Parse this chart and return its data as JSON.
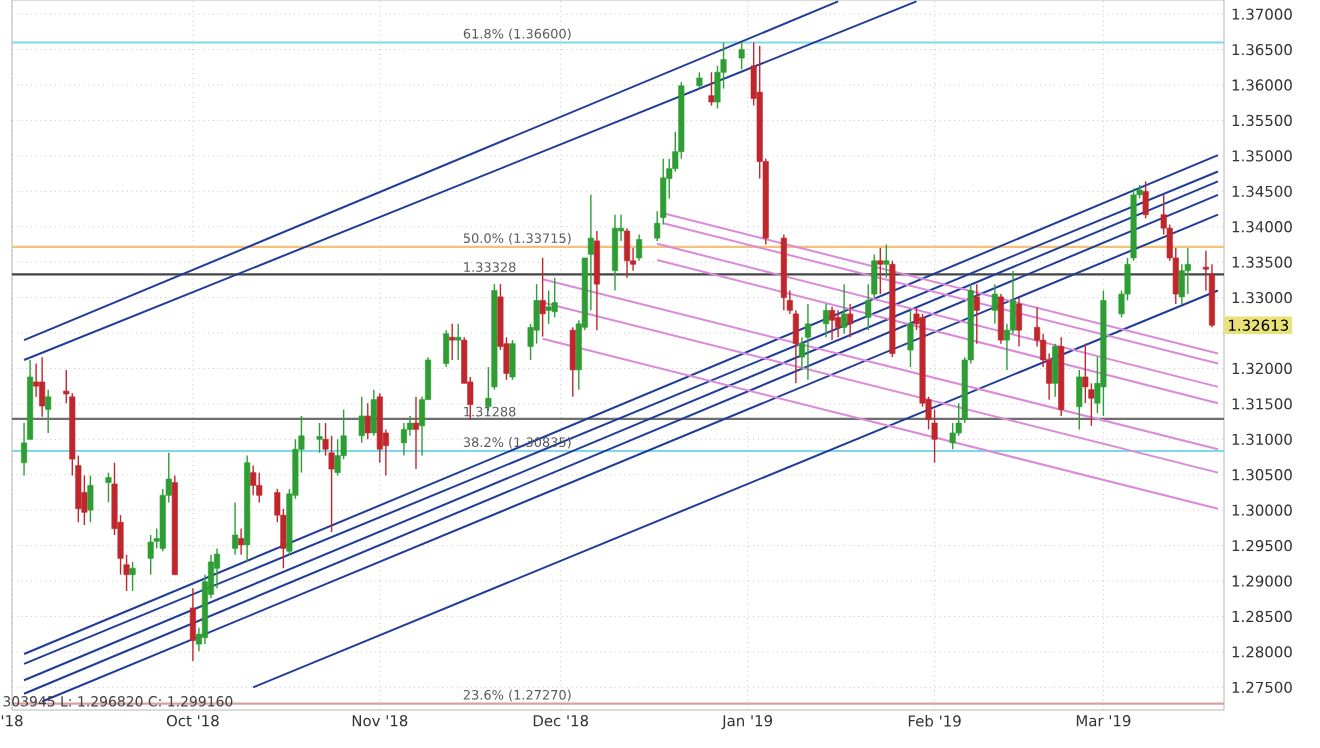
{
  "chart_data": {
    "type": "candlestick",
    "grid": true,
    "xlim": [
      "2018-09-01",
      "2019-03-21"
    ],
    "ylim": [
      1.2718,
      1.372
    ],
    "xticks": [
      {
        "value": "2018-09-01",
        "label": "'18"
      },
      {
        "value": "2018-10-01",
        "label": "Oct '18"
      },
      {
        "value": "2018-11-01",
        "label": "Nov '18"
      },
      {
        "value": "2018-12-01",
        "label": "Dec '18"
      },
      {
        "value": "2019-01-01",
        "label": "Jan '19"
      },
      {
        "value": "2019-02-01",
        "label": "Feb '19"
      },
      {
        "value": "2019-03-01",
        "label": "Mar '19"
      }
    ],
    "yticks": [
      {
        "value": 1.275,
        "label": "1.27500"
      },
      {
        "value": 1.28,
        "label": "1.28000"
      },
      {
        "value": 1.285,
        "label": "1.28500"
      },
      {
        "value": 1.29,
        "label": "1.29000"
      },
      {
        "value": 1.295,
        "label": "1.29500"
      },
      {
        "value": 1.3,
        "label": "1.30000"
      },
      {
        "value": 1.305,
        "label": "1.30500"
      },
      {
        "value": 1.31,
        "label": "1.31000"
      },
      {
        "value": 1.315,
        "label": "1.31500"
      },
      {
        "value": 1.32,
        "label": "1.32000"
      },
      {
        "value": 1.325,
        "label": null
      },
      {
        "value": 1.33,
        "label": "1.33000"
      },
      {
        "value": 1.335,
        "label": "1.33500"
      },
      {
        "value": 1.34,
        "label": "1.34000"
      },
      {
        "value": 1.345,
        "label": "1.34500"
      },
      {
        "value": 1.35,
        "label": "1.35000"
      },
      {
        "value": 1.355,
        "label": "1.35500"
      },
      {
        "value": 1.36,
        "label": "1.36000"
      },
      {
        "value": 1.365,
        "label": "1.36500"
      },
      {
        "value": 1.37,
        "label": "1.37000"
      }
    ],
    "x": [
      "2018-09-03",
      "2018-09-04",
      "2018-09-05",
      "2018-09-06",
      "2018-09-07",
      "2018-09-10",
      "2018-09-11",
      "2018-09-12",
      "2018-09-13",
      "2018-09-14",
      "2018-09-17",
      "2018-09-18",
      "2018-09-19",
      "2018-09-20",
      "2018-09-21",
      "2018-09-24",
      "2018-09-25",
      "2018-09-26",
      "2018-09-27",
      "2018-09-28",
      "2018-10-01",
      "2018-10-02",
      "2018-10-03",
      "2018-10-04",
      "2018-10-05",
      "2018-10-08",
      "2018-10-09",
      "2018-10-10",
      "2018-10-11",
      "2018-10-12",
      "2018-10-15",
      "2018-10-16",
      "2018-10-17",
      "2018-10-18",
      "2018-10-19",
      "2018-10-22",
      "2018-10-23",
      "2018-10-24",
      "2018-10-25",
      "2018-10-26",
      "2018-10-29",
      "2018-10-30",
      "2018-10-31",
      "2018-11-01",
      "2018-11-02",
      "2018-11-05",
      "2018-11-06",
      "2018-11-07",
      "2018-11-08",
      "2018-11-09",
      "2018-11-12",
      "2018-11-13",
      "2018-11-14",
      "2018-11-15",
      "2018-11-16",
      "2018-11-19",
      "2018-11-20",
      "2018-11-21",
      "2018-11-22",
      "2018-11-23",
      "2018-11-26",
      "2018-11-27",
      "2018-11-28",
      "2018-11-29",
      "2018-11-30",
      "2018-12-03",
      "2018-12-04",
      "2018-12-05",
      "2018-12-06",
      "2018-12-07",
      "2018-12-10",
      "2018-12-11",
      "2018-12-12",
      "2018-12-13",
      "2018-12-14",
      "2018-12-17",
      "2018-12-18",
      "2018-12-19",
      "2018-12-20",
      "2018-12-21",
      "2018-12-24",
      "2018-12-26",
      "2018-12-27",
      "2018-12-28",
      "2018-12-31",
      "2019-01-02",
      "2019-01-03",
      "2019-01-04",
      "2019-01-07",
      "2019-01-08",
      "2019-01-09",
      "2019-01-10",
      "2019-01-11",
      "2019-01-14",
      "2019-01-15",
      "2019-01-16",
      "2019-01-17",
      "2019-01-18",
      "2019-01-21",
      "2019-01-22",
      "2019-01-23",
      "2019-01-24",
      "2019-01-25",
      "2019-01-28",
      "2019-01-29",
      "2019-01-30",
      "2019-01-31",
      "2019-02-01",
      "2019-02-04",
      "2019-02-05",
      "2019-02-06",
      "2019-02-07",
      "2019-02-08",
      "2019-02-11",
      "2019-02-12",
      "2019-02-13",
      "2019-02-14",
      "2019-02-15",
      "2019-02-18",
      "2019-02-19",
      "2019-02-20",
      "2019-02-21",
      "2019-02-22",
      "2019-02-25",
      "2019-02-26",
      "2019-02-27",
      "2019-02-28",
      "2019-03-01",
      "2019-03-04",
      "2019-03-05",
      "2019-03-06",
      "2019-03-07",
      "2019-03-08",
      "2019-03-11",
      "2019-03-12",
      "2019-03-13",
      "2019-03-14",
      "2019-03-15",
      "2019-03-18",
      "2019-03-19"
    ],
    "ohlc": [
      [
        1.3067,
        1.3123,
        1.3049,
        1.3095
      ],
      [
        1.31,
        1.3212,
        1.31,
        1.3188
      ],
      [
        1.3181,
        1.3207,
        1.316,
        1.3175
      ],
      [
        1.3181,
        1.3216,
        1.3132,
        1.3147
      ],
      [
        1.3142,
        1.317,
        1.3109,
        1.316
      ],
      [
        1.3168,
        1.3198,
        1.3151,
        1.3164
      ],
      [
        1.316,
        1.3165,
        1.3049,
        1.3072
      ],
      [
        1.3063,
        1.3077,
        1.2983,
        1.3002
      ],
      [
        1.3025,
        1.3049,
        1.2979,
        1.2997
      ],
      [
        1.3,
        1.3049,
        1.2983,
        1.3035
      ],
      [
        1.3039,
        1.3053,
        1.3011,
        1.3046
      ],
      [
        1.3037,
        1.3067,
        1.2965,
        1.2974
      ],
      [
        1.2983,
        1.2993,
        1.2909,
        1.2932
      ],
      [
        1.2923,
        1.2937,
        1.2886,
        1.2909
      ],
      [
        1.2909,
        1.2927,
        1.2886,
        1.2918
      ],
      [
        1.2932,
        1.2965,
        1.2909,
        1.2955
      ],
      [
        1.2956,
        1.2974,
        1.2946,
        1.296
      ],
      [
        1.2946,
        1.303,
        1.2942,
        1.3021
      ],
      [
        1.3021,
        1.3081,
        1.3011,
        1.3044
      ],
      [
        1.3039,
        1.3049,
        1.2909,
        1.2909
      ],
      [
        1.2862,
        1.289,
        1.2787,
        1.2816
      ],
      [
        1.2811,
        1.2834,
        1.2801,
        1.2825
      ],
      [
        1.282,
        1.2909,
        1.2811,
        1.2899
      ],
      [
        1.2881,
        1.2937,
        1.2876,
        1.2927
      ],
      [
        1.2918,
        1.2946,
        1.289,
        1.2938
      ],
      [
        1.2946,
        1.3011,
        1.2937,
        1.2965
      ],
      [
        1.296,
        1.2974,
        1.2937,
        1.2951
      ],
      [
        1.2951,
        1.3077,
        1.2927,
        1.3067
      ],
      [
        1.3053,
        1.3063,
        1.3021,
        1.3035
      ],
      [
        1.3035,
        1.3053,
        1.3011,
        1.3021
      ],
      [
        1.3025,
        1.303,
        1.2983,
        1.2993
      ],
      [
        1.2993,
        1.3002,
        1.2918,
        1.2946
      ],
      [
        1.2942,
        1.303,
        1.2937,
        1.3023
      ],
      [
        1.3021,
        1.31,
        1.3016,
        1.3086
      ],
      [
        1.3086,
        1.3133,
        1.3053,
        1.3105
      ],
      [
        1.31,
        1.3123,
        1.3081,
        1.3104
      ],
      [
        1.31,
        1.3123,
        1.3077,
        1.3086
      ],
      [
        1.3081,
        1.3105,
        1.2969,
        1.3058
      ],
      [
        1.3053,
        1.31,
        1.3049,
        1.3077
      ],
      [
        1.3077,
        1.3142,
        1.3072,
        1.3105
      ],
      [
        1.3105,
        1.316,
        1.3095,
        1.3133
      ],
      [
        1.3133,
        1.3151,
        1.31,
        1.3109
      ],
      [
        1.3109,
        1.317,
        1.3105,
        1.3156
      ],
      [
        1.316,
        1.3165,
        1.3067,
        1.3086
      ],
      [
        1.3109,
        1.3114,
        1.3049,
        1.3091
      ],
      [
        1.3095,
        1.3123,
        1.3077,
        1.3114
      ],
      [
        1.3114,
        1.3133,
        1.3105,
        1.3123
      ],
      [
        1.3123,
        1.316,
        1.3058,
        1.3114
      ],
      [
        1.3119,
        1.316,
        1.3077,
        1.3156
      ],
      [
        1.3156,
        1.3216,
        1.3156,
        1.3212
      ],
      [
        1.3207,
        1.3254,
        1.3202,
        1.3249
      ],
      [
        1.3244,
        1.3263,
        1.3212,
        1.324
      ],
      [
        1.324,
        1.3263,
        1.3212,
        1.3244
      ],
      [
        1.324,
        1.3244,
        1.3179,
        1.3179
      ],
      [
        1.3181,
        1.3188,
        1.3128,
        1.3149
      ],
      [
        1.3146,
        1.3202,
        1.314,
        1.3158
      ],
      [
        1.3174,
        1.3319,
        1.317,
        1.331
      ],
      [
        1.3301,
        1.3319,
        1.3226,
        1.3231
      ],
      [
        1.3235,
        1.3244,
        1.3184,
        1.3193
      ],
      [
        1.3188,
        1.324,
        1.3184,
        1.3235
      ],
      [
        1.3231,
        1.3263,
        1.3212,
        1.3258
      ],
      [
        1.3254,
        1.3319,
        1.3235,
        1.3296
      ],
      [
        1.3296,
        1.3356,
        1.3245,
        1.3277
      ],
      [
        1.3282,
        1.331,
        1.3263,
        1.3287
      ],
      [
        1.328,
        1.3328,
        1.3272,
        1.3293
      ],
      [
        1.3254,
        1.3258,
        1.316,
        1.3198
      ],
      [
        1.3198,
        1.3268,
        1.317,
        1.3263
      ],
      [
        1.3258,
        1.3356,
        1.3254,
        1.3356
      ],
      [
        1.3361,
        1.3445,
        1.3282,
        1.3384
      ],
      [
        1.338,
        1.3394,
        1.3254,
        1.3319
      ],
      [
        1.3338,
        1.3417,
        1.331,
        1.3398
      ],
      [
        1.3394,
        1.3417,
        1.338,
        1.3398
      ],
      [
        1.3394,
        1.3398,
        1.3328,
        1.3352
      ],
      [
        1.3352,
        1.337,
        1.3338,
        1.3347
      ],
      [
        1.3356,
        1.3389,
        1.3352,
        1.3382
      ],
      [
        1.3384,
        1.3422,
        1.338,
        1.3405
      ],
      [
        1.3413,
        1.3496,
        1.3403,
        1.3469
      ],
      [
        1.3468,
        1.3496,
        1.344,
        1.3482
      ],
      [
        1.3482,
        1.3534,
        1.3478,
        1.3506
      ],
      [
        1.3506,
        1.3604,
        1.3496,
        1.3599
      ],
      [
        1.3599,
        1.3618,
        1.3595,
        1.361
      ],
      [
        1.3585,
        1.3618,
        1.3571,
        1.3576
      ],
      [
        1.3576,
        1.3627,
        1.3567,
        1.3618
      ],
      [
        1.3618,
        1.366,
        1.3595,
        1.3636
      ],
      [
        1.3638,
        1.366,
        1.3622,
        1.365
      ],
      [
        1.3627,
        1.366,
        1.3571,
        1.3581
      ],
      [
        1.359,
        1.3655,
        1.3468,
        1.3492
      ],
      [
        1.3492,
        1.3496,
        1.3375,
        1.3384
      ],
      [
        1.3384,
        1.3389,
        1.3282,
        1.33
      ],
      [
        1.3296,
        1.331,
        1.3277,
        1.3282
      ],
      [
        1.3277,
        1.3282,
        1.3179,
        1.3235
      ],
      [
        1.3216,
        1.3244,
        1.3198,
        1.3235
      ],
      [
        1.3244,
        1.3291,
        1.3184,
        1.3263
      ],
      [
        1.3263,
        1.3291,
        1.3244,
        1.3282
      ],
      [
        1.3282,
        1.3287,
        1.324,
        1.3268
      ],
      [
        1.3272,
        1.3282,
        1.3244,
        1.3258
      ],
      [
        1.3258,
        1.3319,
        1.3249,
        1.3277
      ],
      [
        1.3277,
        1.3291,
        1.3244,
        1.3263
      ],
      [
        1.3272,
        1.3319,
        1.3254,
        1.3296
      ],
      [
        1.3305,
        1.3361,
        1.33,
        1.3352
      ],
      [
        1.3352,
        1.337,
        1.3305,
        1.3347
      ],
      [
        1.3347,
        1.3375,
        1.3328,
        1.3352
      ],
      [
        1.3347,
        1.3352,
        1.3216,
        1.3221
      ],
      [
        1.3226,
        1.3282,
        1.3202,
        1.3263
      ],
      [
        1.3277,
        1.3286,
        1.3254,
        1.3263
      ],
      [
        1.3272,
        1.3277,
        1.3146,
        1.3151
      ],
      [
        1.3156,
        1.316,
        1.3114,
        1.3128
      ],
      [
        1.3123,
        1.3142,
        1.3067,
        1.31
      ],
      [
        1.3095,
        1.3123,
        1.3086,
        1.3109
      ],
      [
        1.3109,
        1.3151,
        1.3105,
        1.3123
      ],
      [
        1.3128,
        1.3216,
        1.3123,
        1.3212
      ],
      [
        1.3212,
        1.3319,
        1.3207,
        1.331
      ],
      [
        1.3301,
        1.3319,
        1.3235,
        1.3282
      ],
      [
        1.3282,
        1.3319,
        1.3263,
        1.3305
      ],
      [
        1.3301,
        1.3305,
        1.3235,
        1.324
      ],
      [
        1.324,
        1.3263,
        1.3198,
        1.3254
      ],
      [
        1.3254,
        1.3338,
        1.3249,
        1.3296
      ],
      [
        1.3291,
        1.33,
        1.3231,
        1.3254
      ],
      [
        1.3258,
        1.3286,
        1.3231,
        1.324
      ],
      [
        1.324,
        1.3249,
        1.3202,
        1.3212
      ],
      [
        1.3212,
        1.3221,
        1.3156,
        1.3179
      ],
      [
        1.3179,
        1.3235,
        1.316,
        1.3231
      ],
      [
        1.3231,
        1.3244,
        1.3133,
        1.3142
      ],
      [
        1.3146,
        1.3198,
        1.3114,
        1.3188
      ],
      [
        1.3188,
        1.3235,
        1.3151,
        1.3174
      ],
      [
        1.317,
        1.3179,
        1.3119,
        1.3158
      ],
      [
        1.3151,
        1.3216,
        1.3137,
        1.3179
      ],
      [
        1.3174,
        1.331,
        1.3133,
        1.3296
      ],
      [
        1.3277,
        1.331,
        1.3272,
        1.3305
      ],
      [
        1.3305,
        1.3356,
        1.3296,
        1.3347
      ],
      [
        1.3356,
        1.3454,
        1.3352,
        1.3445
      ],
      [
        1.3445,
        1.3459,
        1.344,
        1.3452
      ],
      [
        1.345,
        1.3464,
        1.3412,
        1.3417
      ],
      [
        1.3417,
        1.3445,
        1.3389,
        1.3398
      ],
      [
        1.3398,
        1.3403,
        1.3352,
        1.3356
      ],
      [
        1.3356,
        1.337,
        1.3291,
        1.3305
      ],
      [
        1.3301,
        1.3347,
        1.3291,
        1.3338
      ],
      [
        1.3338,
        1.337,
        1.3305,
        1.3347
      ],
      [
        1.3343,
        1.3366,
        1.331,
        1.334
      ],
      [
        1.3333,
        1.3347,
        1.3258,
        1.3261
      ]
    ],
    "colors": [
      "#2e9e34",
      "#2e9e34",
      "#c0272d",
      "#c0272d",
      "#2e9e34",
      "#c0272d",
      "#c0272d",
      "#c0272d",
      "#c0272d",
      "#2e9e34",
      "#2e9e34",
      "#c0272d",
      "#c0272d",
      "#c0272d",
      "#2e9e34",
      "#2e9e34",
      "#2e9e34",
      "#2e9e34",
      "#2e9e34",
      "#c0272d",
      "#c0272d",
      "#2e9e34",
      "#2e9e34",
      "#2e9e34",
      "#2e9e34",
      "#2e9e34",
      "#c0272d",
      "#2e9e34",
      "#c0272d",
      "#c0272d",
      "#c0272d",
      "#c0272d",
      "#2e9e34",
      "#2e9e34",
      "#2e9e34",
      "#2e9e34",
      "#c0272d",
      "#c0272d",
      "#2e9e34",
      "#2e9e34",
      "#2e9e34",
      "#c0272d",
      "#2e9e34",
      "#c0272d",
      "#c0272d",
      "#2e9e34",
      "#2e9e34",
      "#c0272d",
      "#2e9e34",
      "#2e9e34",
      "#2e9e34",
      "#c0272d",
      "#2e9e34",
      "#c0272d",
      "#c0272d",
      "#2e9e34",
      "#2e9e34",
      "#c0272d",
      "#c0272d",
      "#2e9e34",
      "#2e9e34",
      "#2e9e34",
      "#c0272d",
      "#2e9e34",
      "#2e9e34",
      "#c0272d",
      "#2e9e34",
      "#2e9e34",
      "#2e9e34",
      "#c0272d",
      "#2e9e34",
      "#2e9e34",
      "#c0272d",
      "#c0272d",
      "#2e9e34",
      "#2e9e34",
      "#2e9e34",
      "#2e9e34",
      "#2e9e34",
      "#2e9e34",
      "#2e9e34",
      "#c0272d",
      "#2e9e34",
      "#2e9e34",
      "#2e9e34",
      "#c0272d",
      "#c0272d",
      "#c0272d",
      "#c0272d",
      "#c0272d",
      "#c0272d",
      "#2e9e34",
      "#2e9e34",
      "#2e9e34",
      "#c0272d",
      "#c0272d",
      "#2e9e34",
      "#c0272d",
      "#2e9e34",
      "#2e9e34",
      "#c0272d",
      "#2e9e34",
      "#c0272d",
      "#2e9e34",
      "#c0272d",
      "#c0272d",
      "#c0272d",
      "#c0272d",
      "#2e9e34",
      "#2e9e34",
      "#2e9e34",
      "#2e9e34",
      "#c0272d",
      "#2e9e34",
      "#c0272d",
      "#2e9e34",
      "#2e9e34",
      "#c0272d",
      "#c0272d",
      "#c0272d",
      "#c0272d",
      "#2e9e34",
      "#c0272d",
      "#2e9e34",
      "#c0272d",
      "#c0272d",
      "#2e9e34",
      "#2e9e34",
      "#2e9e34",
      "#2e9e34",
      "#2e9e34",
      "#2e9e34",
      "#c0272d",
      "#c0272d",
      "#c0272d",
      "#c0272d",
      "#2e9e34",
      "#2e9e34",
      "#c0272d",
      "#c0272d"
    ],
    "series": [
      {
        "type": "line",
        "color": "#1f3c98",
        "x": [
          "2018-09-03",
          "2019-01-16"
        ],
        "values": [
          1.324,
          1.3718
        ]
      },
      {
        "type": "line",
        "color": "#1f3c98",
        "x": [
          "2018-09-03",
          "2019-01-29"
        ],
        "values": [
          1.3212,
          1.3718
        ]
      },
      {
        "type": "line",
        "color": "#1f3c98",
        "x": [
          "2018-09-03",
          "2019-03-20"
        ],
        "values": [
          1.2797,
          1.3501
        ]
      },
      {
        "type": "line",
        "color": "#1f3c98",
        "x": [
          "2018-09-03",
          "2019-03-20"
        ],
        "values": [
          1.2783,
          1.3478
        ]
      },
      {
        "type": "line",
        "color": "#1f3c98",
        "x": [
          "2018-09-03",
          "2019-03-20"
        ],
        "values": [
          1.276,
          1.3464
        ]
      },
      {
        "type": "line",
        "color": "#1f3c98",
        "x": [
          "2018-09-03",
          "2019-03-20"
        ],
        "values": [
          1.2741,
          1.3445
        ]
      },
      {
        "type": "line",
        "color": "#1f3c98",
        "x": [
          "2018-09-06",
          "2019-03-20"
        ],
        "values": [
          1.273,
          1.3417
        ]
      },
      {
        "type": "line",
        "color": "#1f3c98",
        "x": [
          "2018-10-11",
          "2019-03-20"
        ],
        "values": [
          1.275,
          1.331
        ]
      },
      {
        "type": "line",
        "color": "#d98ad9",
        "x": [
          "2018-12-18",
          "2019-03-20"
        ],
        "values": [
          1.3419,
          1.3221
        ]
      },
      {
        "type": "line",
        "color": "#d98ad9",
        "x": [
          "2018-12-18",
          "2019-03-20"
        ],
        "values": [
          1.3405,
          1.3207
        ]
      },
      {
        "type": "line",
        "color": "#d98ad9",
        "x": [
          "2018-12-17",
          "2019-03-20"
        ],
        "values": [
          1.3376,
          1.3174
        ]
      },
      {
        "type": "line",
        "color": "#d98ad9",
        "x": [
          "2018-12-17",
          "2019-03-20"
        ],
        "values": [
          1.3353,
          1.3151
        ]
      },
      {
        "type": "line",
        "color": "#d98ad9",
        "x": [
          "2018-11-28",
          "2019-03-20"
        ],
        "values": [
          1.3326,
          1.3086
        ]
      },
      {
        "type": "line",
        "color": "#d98ad9",
        "x": [
          "2018-11-28",
          "2019-03-20"
        ],
        "values": [
          1.3293,
          1.3053
        ]
      },
      {
        "type": "line",
        "color": "#d98ad9",
        "x": [
          "2018-11-28",
          "2019-03-20"
        ],
        "values": [
          1.3242,
          1.3002
        ]
      }
    ],
    "ref_lines": [
      {
        "axis": "y",
        "value": 1.366,
        "label": "61.8% (1.36600)",
        "color": "#7fd8e8"
      },
      {
        "axis": "y",
        "value": 1.33715,
        "label": "50.0% (1.33715)",
        "color": "#f2c27a"
      },
      {
        "axis": "y",
        "value": 1.33328,
        "label": "1.33328",
        "color": "#444444"
      },
      {
        "axis": "y",
        "value": 1.31288,
        "label": "1.31288",
        "color": "#6e6e6e"
      },
      {
        "axis": "y",
        "value": 1.30835,
        "label": "38.2% (1.30835)",
        "color": "#7fd8e8"
      },
      {
        "axis": "y",
        "value": 1.2727,
        "label": "23.6% (1.27270)",
        "color": "#d9a0a0"
      }
    ],
    "annotations": [
      "1.32613",
      "303945 L: 1.296820 C: 1.299160"
    ]
  }
}
